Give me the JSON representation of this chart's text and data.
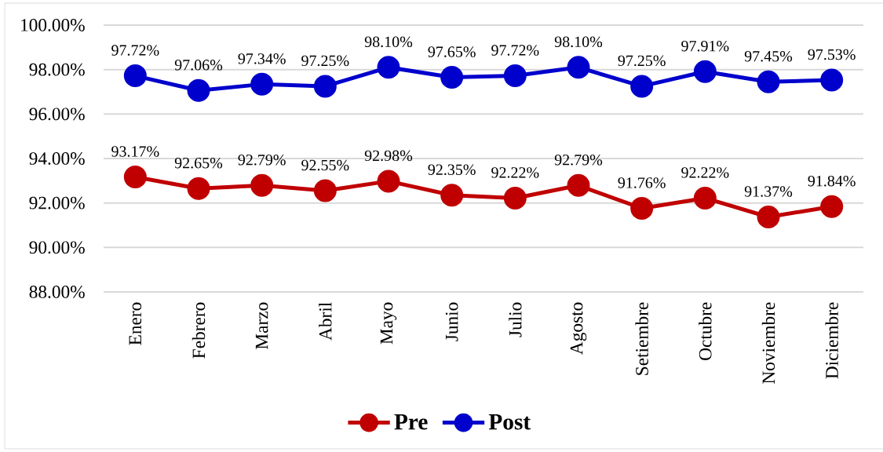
{
  "chart_data": {
    "type": "line",
    "categories": [
      "Enero",
      "Febrero",
      "Marzo",
      "Abril",
      "Mayo",
      "Junio",
      "Julio",
      "Agosto",
      "Setiembre",
      "Octubre",
      "Noviembre",
      "Diciembre"
    ],
    "series": [
      {
        "name": "Pre",
        "color": "#c00000",
        "values": [
          93.17,
          92.65,
          92.79,
          92.55,
          92.98,
          92.35,
          92.22,
          92.79,
          91.76,
          92.22,
          91.37,
          91.84
        ],
        "value_labels": [
          "93.17%",
          "92.65%",
          "92.79%",
          "92.55%",
          "92.98%",
          "92.35%",
          "92.22%",
          "92.79%",
          "91.76%",
          "92.22%",
          "91.37%",
          "91.84%"
        ]
      },
      {
        "name": "Post",
        "color": "#0000cc",
        "values": [
          97.72,
          97.06,
          97.34,
          97.25,
          98.1,
          97.65,
          97.72,
          98.1,
          97.25,
          97.91,
          97.45,
          97.53
        ],
        "value_labels": [
          "97.72%",
          "97.06%",
          "97.34%",
          "97.25%",
          "98.10%",
          "97.65%",
          "97.72%",
          "98.10%",
          "97.25%",
          "97.91%",
          "97.45%",
          "97.53%"
        ]
      }
    ],
    "ylim": [
      88,
      100
    ],
    "yticks": [
      {
        "value": 88,
        "label": "88.00%"
      },
      {
        "value": 90,
        "label": "90.00%"
      },
      {
        "value": 92,
        "label": "92.00%"
      },
      {
        "value": 94,
        "label": "94.00%"
      },
      {
        "value": 96,
        "label": "96.00%"
      },
      {
        "value": 98,
        "label": "98.00%"
      },
      {
        "value": 100,
        "label": "100.00%"
      }
    ],
    "grid": "y",
    "legend": "bottom",
    "marker": "circle",
    "line_style": "solid"
  }
}
